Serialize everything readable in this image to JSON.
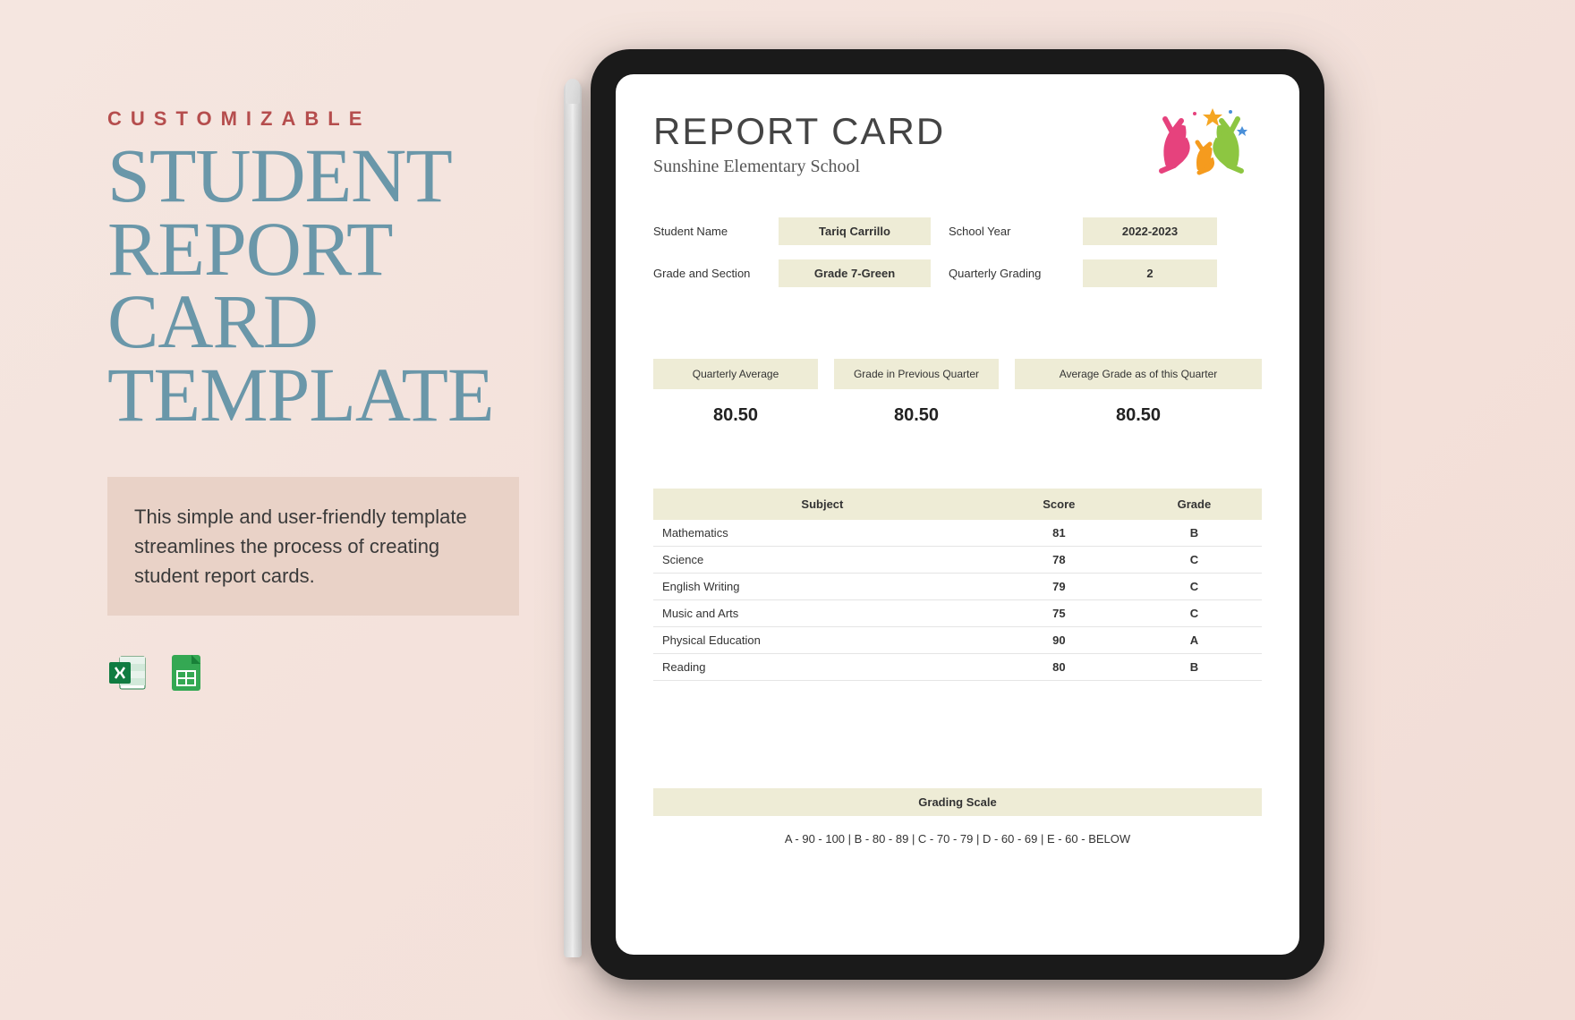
{
  "left": {
    "eyebrow": "CUSTOMIZABLE",
    "title_lines": [
      "STUDENT",
      "REPORT",
      "CARD",
      "TEMPLATE"
    ],
    "description": "This simple and user-friendly template streamlines the process of creating student report cards."
  },
  "colors": {
    "eyebrow": "#b54d4d",
    "title": "#6a97a9",
    "desc_bg": "#e9d2c7",
    "field_bg": "#eeecd6",
    "bg_start": "#f5e6e0",
    "bg_end": "#f2ddd6"
  },
  "icons": {
    "excel_color": "#1e7e46",
    "sheets_color": "#34a853"
  },
  "report": {
    "title": "REPORT CARD",
    "school": "Sunshine Elementary School",
    "logo_colors": {
      "pink": "#e6427d",
      "orange": "#f59b1e",
      "green": "#8dc641",
      "star": "#f5a623"
    },
    "info": {
      "student_label": "Student Name",
      "student_value": "Tariq Carrillo",
      "year_label": "School Year",
      "year_value": "2022-2023",
      "grade_label": "Grade and Section",
      "grade_value": "Grade 7-Green",
      "quarter_label": "Quarterly Grading",
      "quarter_value": "2"
    },
    "averages": {
      "col1_label": "Quarterly Average",
      "col1_value": "80.50",
      "col2_label": "Grade in Previous Quarter",
      "col2_value": "80.50",
      "col3_label": "Average Grade as of this Quarter",
      "col3_value": "80.50"
    },
    "table": {
      "columns": [
        "Subject",
        "Score",
        "Grade"
      ],
      "rows": [
        [
          "Mathematics",
          "81",
          "B"
        ],
        [
          "Science",
          "78",
          "C"
        ],
        [
          "English Writing",
          "79",
          "C"
        ],
        [
          "Music and Arts",
          "75",
          "C"
        ],
        [
          "Physical Education",
          "90",
          "A"
        ],
        [
          "Reading",
          "80",
          "B"
        ]
      ]
    },
    "scale_header": "Grading Scale",
    "scale_text": "A - 90 - 100 | B - 80 - 89 | C - 70 - 79 | D - 60 - 69 | E - 60 - BELOW"
  }
}
